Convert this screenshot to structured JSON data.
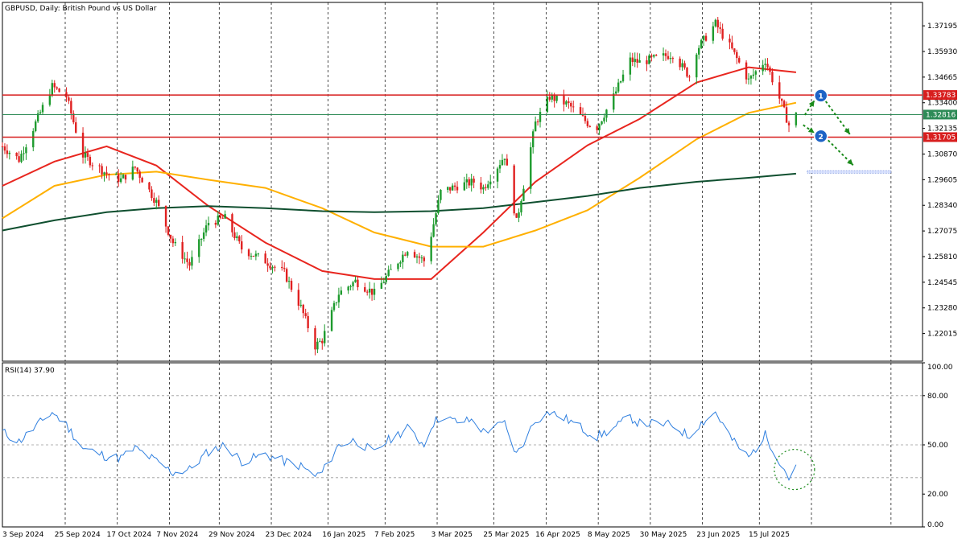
{
  "header": {
    "title": "GBPUSD, Daily:  British Pound vs US Dollar"
  },
  "rsi_header": {
    "title": "RSI(14) 37.90"
  },
  "colors": {
    "bull": "#1e9b2e",
    "bear": "#e02020",
    "ma_fast": "#e8261f",
    "ma_mid": "#ffb000",
    "ma_slow": "#0f4f2f",
    "rsi": "#2f7fdf",
    "level_red": "#d81e1e",
    "level_green": "#2e8b57",
    "arrow": "#1a8a1a",
    "marker": "#1e63c6"
  },
  "chart_data": [
    {
      "type": "candlestick",
      "title": "GBPUSD, Daily:  British Pound vs US Dollar",
      "timeframe": "Daily",
      "ylim": [
        1.2065,
        1.3835
      ],
      "y_ticks": [
        "1.37195",
        "1.35930",
        "1.34665",
        "1.33400",
        "1.32135",
        "1.30870",
        "1.29605",
        "1.28340",
        "1.27075",
        "1.25810",
        "1.24545",
        "1.23280",
        "1.22015"
      ],
      "x_ticks": [
        "3 Sep 2024",
        "25 Sep 2024",
        "17 Oct 2024",
        "7 Nov 2024",
        "29 Nov 2024",
        "23 Dec 2024",
        "16 Jan 2025",
        "7 Feb 2025",
        "3 Mar 2025",
        "25 Mar 2025",
        "16 Apr 2025",
        "8 May 2025",
        "30 May 2025",
        "23 Jun 2025",
        "15 Jul 2025"
      ],
      "price_anchors": [
        {
          "date": "3 Sep 2024",
          "close": 1.3125
        },
        {
          "date": "10 Sep 2024",
          "close": 1.306
        },
        {
          "date": "24 Sep 2024",
          "close": 1.342
        },
        {
          "date": "30 Sep 2024",
          "close": 1.337
        },
        {
          "date": "7 Oct 2024",
          "close": 1.308
        },
        {
          "date": "17 Oct 2024",
          "close": 1.299
        },
        {
          "date": "23 Oct 2024",
          "close": 1.296
        },
        {
          "date": "29 Oct 2024",
          "close": 1.302
        },
        {
          "date": "7 Nov 2024",
          "close": 1.285
        },
        {
          "date": "14 Nov 2024",
          "close": 1.265
        },
        {
          "date": "21 Nov 2024",
          "close": 1.254
        },
        {
          "date": "29 Nov 2024",
          "close": 1.275
        },
        {
          "date": "6 Dec 2024",
          "close": 1.277
        },
        {
          "date": "13 Dec 2024",
          "close": 1.262
        },
        {
          "date": "23 Dec 2024",
          "close": 1.256
        },
        {
          "date": "31 Dec 2024",
          "close": 1.25
        },
        {
          "date": "7 Jan 2025",
          "close": 1.233
        },
        {
          "date": "13 Jan 2025",
          "close": 1.214
        },
        {
          "date": "16 Jan 2025",
          "close": 1.217
        },
        {
          "date": "23 Jan 2025",
          "close": 1.24
        },
        {
          "date": "30 Jan 2025",
          "close": 1.246
        },
        {
          "date": "7 Feb 2025",
          "close": 1.24
        },
        {
          "date": "12 Feb 2025",
          "close": 1.248
        },
        {
          "date": "21 Feb 2025",
          "close": 1.262
        },
        {
          "date": "28 Feb 2025",
          "close": 1.256
        },
        {
          "date": "3 Mar 2025",
          "close": 1.269
        },
        {
          "date": "7 Mar 2025",
          "close": 1.29
        },
        {
          "date": "14 Mar 2025",
          "close": 1.293
        },
        {
          "date": "21 Mar 2025",
          "close": 1.295
        },
        {
          "date": "25 Mar 2025",
          "close": 1.292
        },
        {
          "date": "3 Apr 2025",
          "close": 1.308
        },
        {
          "date": "8 Apr 2025",
          "close": 1.275
        },
        {
          "date": "16 Apr 2025",
          "close": 1.324
        },
        {
          "date": "22 Apr 2025",
          "close": 1.337
        },
        {
          "date": "30 Apr 2025",
          "close": 1.333
        },
        {
          "date": "8 May 2025",
          "close": 1.324
        },
        {
          "date": "12 May 2025",
          "close": 1.322
        },
        {
          "date": "19 May 2025",
          "close": 1.337
        },
        {
          "date": "26 May 2025",
          "close": 1.355
        },
        {
          "date": "30 May 2025",
          "close": 1.354
        },
        {
          "date": "6 Jun 2025",
          "close": 1.356
        },
        {
          "date": "13 Jun 2025",
          "close": 1.358
        },
        {
          "date": "20 Jun 2025",
          "close": 1.347
        },
        {
          "date": "23 Jun 2025",
          "close": 1.36
        },
        {
          "date": "1 Jul 2025",
          "close": 1.373
        },
        {
          "date": "8 Jul 2025",
          "close": 1.36
        },
        {
          "date": "15 Jul 2025",
          "close": 1.345
        },
        {
          "date": "22 Jul 2025",
          "close": 1.355
        },
        {
          "date": "29 Jul 2025",
          "close": 1.333
        },
        {
          "date": "1 Aug 2025",
          "close": 1.323
        },
        {
          "date": "4 Aug 2025",
          "close": 1.328
        }
      ],
      "moving_averages": [
        {
          "color": "#e8261f",
          "values": [
            {
              "date": "3 Sep 2024",
              "value": 1.293
            },
            {
              "date": "25 Sep 2024",
              "value": 1.305
            },
            {
              "date": "17 Oct 2024",
              "value": 1.3125
            },
            {
              "date": "7 Nov 2024",
              "value": 1.303
            },
            {
              "date": "29 Nov 2024",
              "value": 1.283
            },
            {
              "date": "23 Dec 2024",
              "value": 1.265
            },
            {
              "date": "16 Jan 2025",
              "value": 1.251
            },
            {
              "date": "7 Feb 2025",
              "value": 1.247
            },
            {
              "date": "3 Mar 2025",
              "value": 1.247
            },
            {
              "date": "25 Mar 2025",
              "value": 1.27
            },
            {
              "date": "16 Apr 2025",
              "value": 1.295
            },
            {
              "date": "8 May 2025",
              "value": 1.313
            },
            {
              "date": "30 May 2025",
              "value": 1.326
            },
            {
              "date": "23 Jun 2025",
              "value": 1.344
            },
            {
              "date": "15 Jul 2025",
              "value": 1.3515
            },
            {
              "date": "4 Aug 2025",
              "value": 1.349
            }
          ]
        },
        {
          "color": "#ffb000",
          "values": [
            {
              "date": "3 Sep 2024",
              "value": 1.277
            },
            {
              "date": "25 Sep 2024",
              "value": 1.293
            },
            {
              "date": "17 Oct 2024",
              "value": 1.2985
            },
            {
              "date": "7 Nov 2024",
              "value": 1.3
            },
            {
              "date": "29 Nov 2024",
              "value": 1.296
            },
            {
              "date": "23 Dec 2024",
              "value": 1.292
            },
            {
              "date": "16 Jan 2025",
              "value": 1.282
            },
            {
              "date": "7 Feb 2025",
              "value": 1.27
            },
            {
              "date": "3 Mar 2025",
              "value": 1.263
            },
            {
              "date": "25 Mar 2025",
              "value": 1.263
            },
            {
              "date": "16 Apr 2025",
              "value": 1.271
            },
            {
              "date": "8 May 2025",
              "value": 1.281
            },
            {
              "date": "30 May 2025",
              "value": 1.297
            },
            {
              "date": "23 Jun 2025",
              "value": 1.316
            },
            {
              "date": "15 Jul 2025",
              "value": 1.329
            },
            {
              "date": "4 Aug 2025",
              "value": 1.334
            }
          ]
        },
        {
          "color": "#0f4f2f",
          "values": [
            {
              "date": "3 Sep 2024",
              "value": 1.271
            },
            {
              "date": "25 Sep 2024",
              "value": 1.276
            },
            {
              "date": "17 Oct 2024",
              "value": 1.28
            },
            {
              "date": "7 Nov 2024",
              "value": 1.282
            },
            {
              "date": "29 Nov 2024",
              "value": 1.283
            },
            {
              "date": "23 Dec 2024",
              "value": 1.282
            },
            {
              "date": "16 Jan 2025",
              "value": 1.2805
            },
            {
              "date": "7 Feb 2025",
              "value": 1.28
            },
            {
              "date": "3 Mar 2025",
              "value": 1.2805
            },
            {
              "date": "25 Mar 2025",
              "value": 1.282
            },
            {
              "date": "16 Apr 2025",
              "value": 1.285
            },
            {
              "date": "8 May 2025",
              "value": 1.288
            },
            {
              "date": "30 May 2025",
              "value": 1.292
            },
            {
              "date": "23 Jun 2025",
              "value": 1.295
            },
            {
              "date": "15 Jul 2025",
              "value": 1.297
            },
            {
              "date": "4 Aug 2025",
              "value": 1.299
            }
          ]
        }
      ],
      "levels": [
        {
          "price": 1.33783,
          "label": "1.33783",
          "color": "#d81e1e"
        },
        {
          "price": 1.32816,
          "label": "1.32816",
          "color": "#2e8b57"
        },
        {
          "price": 1.31705,
          "label": "1.31705",
          "color": "#d81e1e"
        },
        {
          "price": 1.2999,
          "label": "",
          "color": "#3a5fcd",
          "style": "dotted",
          "from": "4 Aug 2025"
        }
      ],
      "markers": [
        {
          "label": "1",
          "price": 1.3375,
          "date": "6 Aug 2025"
        },
        {
          "label": "2",
          "price": 1.3175,
          "date": "6 Aug 2025"
        }
      ]
    },
    {
      "type": "line",
      "title": "RSI(14) 37.90",
      "ylim": [
        0,
        100
      ],
      "y_ticks": [
        "100.00",
        "80.00",
        "50.00",
        "20.00",
        "0.00"
      ],
      "levels": [
        80,
        50,
        30
      ],
      "series": [
        {
          "values": [
            {
              "date": "3 Sep 2024",
              "value": 58
            },
            {
              "date": "10 Sep 2024",
              "value": 52
            },
            {
              "date": "24 Sep 2024",
              "value": 70
            },
            {
              "date": "30 Sep 2024",
              "value": 62
            },
            {
              "date": "7 Oct 2024",
              "value": 48
            },
            {
              "date": "17 Oct 2024",
              "value": 43
            },
            {
              "date": "23 Oct 2024",
              "value": 42
            },
            {
              "date": "29 Oct 2024",
              "value": 48
            },
            {
              "date": "7 Nov 2024",
              "value": 40
            },
            {
              "date": "14 Nov 2024",
              "value": 33
            },
            {
              "date": "21 Nov 2024",
              "value": 35
            },
            {
              "date": "29 Nov 2024",
              "value": 46
            },
            {
              "date": "6 Dec 2024",
              "value": 50
            },
            {
              "date": "13 Dec 2024",
              "value": 40
            },
            {
              "date": "23 Dec 2024",
              "value": 44
            },
            {
              "date": "31 Dec 2024",
              "value": 40
            },
            {
              "date": "7 Jan 2025",
              "value": 37
            },
            {
              "date": "13 Jan 2025",
              "value": 31
            },
            {
              "date": "16 Jan 2025",
              "value": 33
            },
            {
              "date": "23 Jan 2025",
              "value": 50
            },
            {
              "date": "30 Jan 2025",
              "value": 53
            },
            {
              "date": "7 Feb 2025",
              "value": 45
            },
            {
              "date": "12 Feb 2025",
              "value": 52
            },
            {
              "date": "21 Feb 2025",
              "value": 60
            },
            {
              "date": "28 Feb 2025",
              "value": 50
            },
            {
              "date": "3 Mar 2025",
              "value": 62
            },
            {
              "date": "7 Mar 2025",
              "value": 67
            },
            {
              "date": "14 Mar 2025",
              "value": 64
            },
            {
              "date": "21 Mar 2025",
              "value": 65
            },
            {
              "date": "25 Mar 2025",
              "value": 58
            },
            {
              "date": "3 Apr 2025",
              "value": 63
            },
            {
              "date": "8 Apr 2025",
              "value": 44
            },
            {
              "date": "16 Apr 2025",
              "value": 65
            },
            {
              "date": "22 Apr 2025",
              "value": 70
            },
            {
              "date": "30 Apr 2025",
              "value": 65
            },
            {
              "date": "8 May 2025",
              "value": 58
            },
            {
              "date": "12 May 2025",
              "value": 55
            },
            {
              "date": "19 May 2025",
              "value": 60
            },
            {
              "date": "26 May 2025",
              "value": 67
            },
            {
              "date": "30 May 2025",
              "value": 63
            },
            {
              "date": "6 Jun 2025",
              "value": 63
            },
            {
              "date": "13 Jun 2025",
              "value": 62
            },
            {
              "date": "20 Jun 2025",
              "value": 55
            },
            {
              "date": "23 Jun 2025",
              "value": 61
            },
            {
              "date": "1 Jul 2025",
              "value": 70
            },
            {
              "date": "8 Jul 2025",
              "value": 53
            },
            {
              "date": "15 Jul 2025",
              "value": 42
            },
            {
              "date": "22 Jul 2025",
              "value": 56
            },
            {
              "date": "29 Jul 2025",
              "value": 38
            },
            {
              "date": "1 Aug 2025",
              "value": 30
            },
            {
              "date": "4 Aug 2025",
              "value": 37.9
            }
          ]
        }
      ]
    }
  ]
}
